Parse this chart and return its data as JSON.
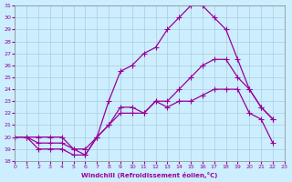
{
  "background_color": "#cceeff",
  "grid_color": "#aaccdd",
  "line_color": "#990099",
  "marker": "+",
  "xlim": [
    0,
    23
  ],
  "ylim": [
    18,
    31
  ],
  "yticks": [
    18,
    19,
    20,
    21,
    22,
    23,
    24,
    25,
    26,
    27,
    28,
    29,
    30,
    31
  ],
  "xticks": [
    0,
    1,
    2,
    3,
    4,
    5,
    6,
    7,
    8,
    9,
    10,
    11,
    12,
    13,
    14,
    15,
    16,
    17,
    18,
    19,
    20,
    21,
    22,
    23
  ],
  "xlabel": "Windchill (Refroidissement éolien,°C)",
  "line1_x": [
    0,
    1,
    2,
    3,
    4,
    5,
    6,
    7,
    8,
    9,
    10,
    11,
    12,
    13,
    14,
    15,
    16,
    17,
    18,
    19,
    20,
    21,
    22
  ],
  "line1_y": [
    20,
    20,
    19,
    19,
    19,
    18.5,
    18.5,
    20,
    21,
    22.5,
    22.5,
    22,
    23,
    22.5,
    23,
    23,
    23.5,
    24,
    24,
    24,
    22,
    21.5,
    19.5
  ],
  "line2_x": [
    0,
    1,
    2,
    3,
    4,
    5,
    6,
    7,
    8,
    9,
    10,
    11,
    12,
    13,
    14,
    15,
    16,
    17,
    18,
    19,
    20,
    21,
    22
  ],
  "line2_y": [
    20,
    20,
    19.5,
    19.5,
    19.5,
    19,
    19,
    20,
    21,
    22,
    22,
    22,
    23,
    23,
    24,
    25,
    26,
    26.5,
    26.5,
    25,
    24,
    22.5,
    21.5
  ],
  "line3_x": [
    0,
    2,
    3,
    4,
    5,
    6,
    7,
    8,
    9,
    10,
    11,
    12,
    13,
    14,
    15,
    16,
    17,
    18,
    19,
    20,
    21,
    22
  ],
  "line3_y": [
    20,
    20,
    20,
    20,
    19,
    18.5,
    20,
    23,
    25.5,
    26,
    27,
    27.5,
    29,
    30,
    31,
    31,
    30,
    29,
    26.5,
    24,
    22.5,
    21.5
  ]
}
